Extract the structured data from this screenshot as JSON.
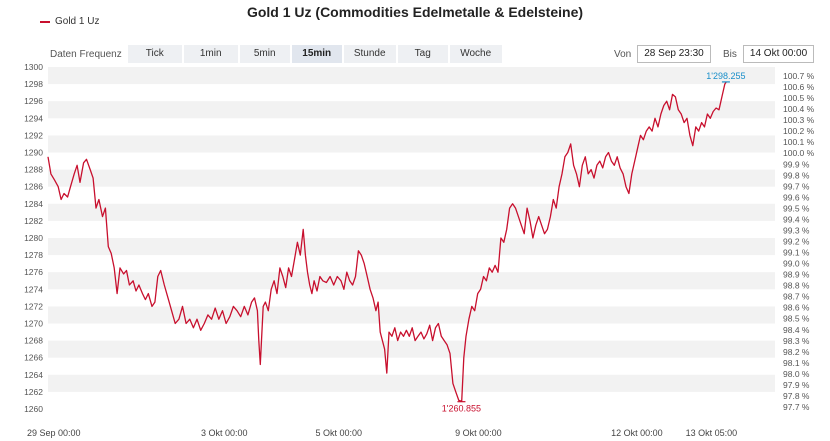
{
  "header": {
    "title": "Gold 1 Uz (Commodities Edelmetalle & Edelsteine)",
    "legend_label": "Gold 1 Uz"
  },
  "toolbar": {
    "freq_label": "Daten Frequenz",
    "buttons": [
      "Tick",
      "1min",
      "5min",
      "15min",
      "Stunde",
      "Tag",
      "Woche"
    ],
    "active": "15min"
  },
  "range": {
    "from_label": "Von",
    "from_value": "28 Sep 23:30",
    "to_label": "Bis",
    "to_value": "14 Okt 00:00"
  },
  "chart_data": {
    "type": "line",
    "color": "#c8102e",
    "ylim": [
      1260,
      1300
    ],
    "y_ticks": [
      1260,
      1262,
      1264,
      1266,
      1268,
      1270,
      1272,
      1274,
      1276,
      1278,
      1280,
      1282,
      1284,
      1286,
      1288,
      1290,
      1292,
      1294,
      1296,
      1298,
      1300
    ],
    "right_ticks": [
      "97.7 %",
      "97.8 %",
      "97.9 %",
      "98.0 %",
      "98.1 %",
      "98.2 %",
      "98.3 %",
      "98.4 %",
      "98.5 %",
      "98.6 %",
      "98.7 %",
      "98.8 %",
      "98.9 %",
      "99.0 %",
      "99.1 %",
      "99.2 %",
      "99.3 %",
      "99.4 %",
      "99.5 %",
      "99.6 %",
      "99.7 %",
      "99.8 %",
      "99.9 %",
      "100.0 %",
      "100.1 %",
      "100.2 %",
      "100.3 %",
      "100.4 %",
      "100.5 %",
      "100.6 %",
      "100.7 %"
    ],
    "x_ticks": [
      "29 Sep 00:00",
      "3 Okt 00:00",
      "5 Okt 00:00",
      "9 Okt 00:00",
      "12 Okt 00:00",
      "13 Okt 05:00"
    ],
    "x_tick_pos": [
      0,
      0.2425,
      0.4,
      0.592,
      0.81,
      0.9125
    ],
    "annotations": {
      "high": {
        "label": "1'298.255",
        "value": 1298.255,
        "t": 0.9325
      },
      "low": {
        "label": "1'260.855",
        "value": 1260.855,
        "t": 0.5687
      }
    },
    "series": [
      {
        "points": [
          [
            0.0,
            1289.5
          ],
          [
            0.004,
            1287.5
          ],
          [
            0.009,
            1286.8
          ],
          [
            0.014,
            1286.0
          ],
          [
            0.018,
            1284.5
          ],
          [
            0.022,
            1285.2
          ],
          [
            0.027,
            1284.8
          ],
          [
            0.031,
            1286.0
          ],
          [
            0.036,
            1287.5
          ],
          [
            0.04,
            1288.5
          ],
          [
            0.044,
            1286.5
          ],
          [
            0.049,
            1288.8
          ],
          [
            0.053,
            1289.2
          ],
          [
            0.058,
            1288.0
          ],
          [
            0.062,
            1287.0
          ],
          [
            0.066,
            1283.5
          ],
          [
            0.07,
            1284.5
          ],
          [
            0.075,
            1282.5
          ],
          [
            0.079,
            1283.5
          ],
          [
            0.083,
            1279.0
          ],
          [
            0.087,
            1278.2
          ],
          [
            0.091,
            1276.5
          ],
          [
            0.095,
            1273.5
          ],
          [
            0.099,
            1276.5
          ],
          [
            0.104,
            1275.8
          ],
          [
            0.108,
            1276.2
          ],
          [
            0.112,
            1274.5
          ],
          [
            0.117,
            1275.0
          ],
          [
            0.121,
            1273.8
          ],
          [
            0.125,
            1274.5
          ],
          [
            0.13,
            1273.5
          ],
          [
            0.134,
            1272.8
          ],
          [
            0.138,
            1273.5
          ],
          [
            0.143,
            1272.0
          ],
          [
            0.147,
            1272.5
          ],
          [
            0.151,
            1275.5
          ],
          [
            0.155,
            1276.2
          ],
          [
            0.16,
            1274.5
          ],
          [
            0.165,
            1273.0
          ],
          [
            0.17,
            1271.5
          ],
          [
            0.175,
            1270.0
          ],
          [
            0.18,
            1270.5
          ],
          [
            0.185,
            1272.0
          ],
          [
            0.19,
            1270.0
          ],
          [
            0.195,
            1270.5
          ],
          [
            0.2,
            1269.5
          ],
          [
            0.205,
            1270.5
          ],
          [
            0.21,
            1269.2
          ],
          [
            0.215,
            1270.0
          ],
          [
            0.22,
            1271.0
          ],
          [
            0.225,
            1270.5
          ],
          [
            0.23,
            1271.8
          ],
          [
            0.235,
            1270.5
          ],
          [
            0.24,
            1271.5
          ],
          [
            0.245,
            1270.0
          ],
          [
            0.25,
            1270.8
          ],
          [
            0.255,
            1272.0
          ],
          [
            0.26,
            1271.5
          ],
          [
            0.265,
            1270.8
          ],
          [
            0.27,
            1272.0
          ],
          [
            0.275,
            1271.0
          ],
          [
            0.28,
            1272.5
          ],
          [
            0.284,
            1273.0
          ],
          [
            0.288,
            1271.5
          ],
          [
            0.29,
            1268.0
          ],
          [
            0.292,
            1265.2
          ],
          [
            0.294,
            1268.5
          ],
          [
            0.296,
            1272.0
          ],
          [
            0.299,
            1272.5
          ],
          [
            0.303,
            1271.5
          ],
          [
            0.307,
            1274.0
          ],
          [
            0.311,
            1275.0
          ],
          [
            0.315,
            1273.5
          ],
          [
            0.319,
            1276.5
          ],
          [
            0.323,
            1275.5
          ],
          [
            0.327,
            1274.2
          ],
          [
            0.331,
            1276.5
          ],
          [
            0.335,
            1275.5
          ],
          [
            0.339,
            1277.5
          ],
          [
            0.343,
            1279.5
          ],
          [
            0.347,
            1278.0
          ],
          [
            0.351,
            1281.0
          ],
          [
            0.354,
            1278.0
          ],
          [
            0.357,
            1276.0
          ],
          [
            0.36,
            1274.5
          ],
          [
            0.363,
            1273.5
          ],
          [
            0.366,
            1275.0
          ],
          [
            0.37,
            1273.8
          ],
          [
            0.374,
            1275.5
          ],
          [
            0.378,
            1275.0
          ],
          [
            0.383,
            1274.8
          ],
          [
            0.388,
            1275.5
          ],
          [
            0.393,
            1274.5
          ],
          [
            0.398,
            1275.5
          ],
          [
            0.403,
            1275.0
          ],
          [
            0.407,
            1274.0
          ],
          [
            0.411,
            1276.0
          ],
          [
            0.415,
            1275.0
          ],
          [
            0.419,
            1274.5
          ],
          [
            0.423,
            1275.5
          ],
          [
            0.427,
            1278.5
          ],
          [
            0.431,
            1278.0
          ],
          [
            0.435,
            1277.0
          ],
          [
            0.439,
            1275.5
          ],
          [
            0.443,
            1274.0
          ],
          [
            0.447,
            1273.0
          ],
          [
            0.451,
            1271.5
          ],
          [
            0.454,
            1272.5
          ],
          [
            0.457,
            1269.0
          ],
          [
            0.46,
            1268.0
          ],
          [
            0.463,
            1267.0
          ],
          [
            0.466,
            1264.2
          ],
          [
            0.469,
            1269.0
          ],
          [
            0.473,
            1268.5
          ],
          [
            0.477,
            1269.5
          ],
          [
            0.481,
            1268.0
          ],
          [
            0.485,
            1269.0
          ],
          [
            0.489,
            1268.5
          ],
          [
            0.493,
            1269.2
          ],
          [
            0.497,
            1268.5
          ],
          [
            0.501,
            1269.5
          ],
          [
            0.505,
            1268.0
          ],
          [
            0.509,
            1268.5
          ],
          [
            0.513,
            1269.0
          ],
          [
            0.517,
            1268.2
          ],
          [
            0.521,
            1268.8
          ],
          [
            0.525,
            1269.8
          ],
          [
            0.529,
            1268.0
          ],
          [
            0.533,
            1269.5
          ],
          [
            0.537,
            1270.0
          ],
          [
            0.541,
            1268.5
          ],
          [
            0.545,
            1268.0
          ],
          [
            0.549,
            1267.5
          ],
          [
            0.553,
            1266.5
          ],
          [
            0.557,
            1263.0
          ],
          [
            0.561,
            1262.0
          ],
          [
            0.565,
            1261.0
          ],
          [
            0.569,
            1260.9
          ],
          [
            0.572,
            1266.0
          ],
          [
            0.575,
            1268.5
          ],
          [
            0.579,
            1270.5
          ],
          [
            0.583,
            1272.0
          ],
          [
            0.587,
            1271.5
          ],
          [
            0.591,
            1273.5
          ],
          [
            0.595,
            1274.0
          ],
          [
            0.599,
            1275.5
          ],
          [
            0.603,
            1275.0
          ],
          [
            0.607,
            1276.5
          ],
          [
            0.611,
            1276.0
          ],
          [
            0.615,
            1276.8
          ],
          [
            0.619,
            1276.0
          ],
          [
            0.623,
            1280.0
          ],
          [
            0.627,
            1279.5
          ],
          [
            0.631,
            1281.0
          ],
          [
            0.635,
            1283.5
          ],
          [
            0.639,
            1284.0
          ],
          [
            0.643,
            1283.5
          ],
          [
            0.647,
            1282.5
          ],
          [
            0.651,
            1281.5
          ],
          [
            0.655,
            1280.5
          ],
          [
            0.659,
            1283.5
          ],
          [
            0.663,
            1282.0
          ],
          [
            0.667,
            1280.0
          ],
          [
            0.671,
            1281.5
          ],
          [
            0.675,
            1282.5
          ],
          [
            0.679,
            1281.5
          ],
          [
            0.683,
            1280.5
          ],
          [
            0.687,
            1281.0
          ],
          [
            0.691,
            1282.5
          ],
          [
            0.695,
            1284.5
          ],
          [
            0.699,
            1283.5
          ],
          [
            0.703,
            1286.0
          ],
          [
            0.707,
            1287.5
          ],
          [
            0.711,
            1289.5
          ],
          [
            0.715,
            1290.0
          ],
          [
            0.719,
            1291.0
          ],
          [
            0.723,
            1288.5
          ],
          [
            0.727,
            1287.5
          ],
          [
            0.731,
            1286.0
          ],
          [
            0.735,
            1288.5
          ],
          [
            0.739,
            1289.5
          ],
          [
            0.743,
            1287.5
          ],
          [
            0.747,
            1288.0
          ],
          [
            0.751,
            1287.0
          ],
          [
            0.755,
            1288.5
          ],
          [
            0.759,
            1289.0
          ],
          [
            0.763,
            1288.2
          ],
          [
            0.767,
            1289.5
          ],
          [
            0.771,
            1290.0
          ],
          [
            0.775,
            1289.0
          ],
          [
            0.779,
            1288.5
          ],
          [
            0.783,
            1289.5
          ],
          [
            0.787,
            1288.2
          ],
          [
            0.791,
            1287.5
          ],
          [
            0.795,
            1286.0
          ],
          [
            0.799,
            1285.2
          ],
          [
            0.803,
            1287.5
          ],
          [
            0.807,
            1289.0
          ],
          [
            0.811,
            1290.5
          ],
          [
            0.815,
            1292.0
          ],
          [
            0.819,
            1291.5
          ],
          [
            0.823,
            1292.5
          ],
          [
            0.827,
            1293.0
          ],
          [
            0.831,
            1292.5
          ],
          [
            0.835,
            1294.0
          ],
          [
            0.839,
            1293.0
          ],
          [
            0.843,
            1294.5
          ],
          [
            0.847,
            1295.5
          ],
          [
            0.851,
            1296.0
          ],
          [
            0.855,
            1295.0
          ],
          [
            0.859,
            1296.8
          ],
          [
            0.863,
            1296.5
          ],
          [
            0.867,
            1295.0
          ],
          [
            0.871,
            1294.5
          ],
          [
            0.875,
            1293.5
          ],
          [
            0.879,
            1294.0
          ],
          [
            0.883,
            1292.0
          ],
          [
            0.887,
            1290.8
          ],
          [
            0.891,
            1293.0
          ],
          [
            0.895,
            1292.5
          ],
          [
            0.899,
            1293.5
          ],
          [
            0.903,
            1293.0
          ],
          [
            0.907,
            1294.5
          ],
          [
            0.911,
            1294.0
          ],
          [
            0.915,
            1294.8
          ],
          [
            0.919,
            1295.2
          ],
          [
            0.923,
            1295.0
          ],
          [
            0.927,
            1296.5
          ],
          [
            0.931,
            1298.0
          ],
          [
            0.933,
            1298.255
          ]
        ]
      }
    ]
  }
}
